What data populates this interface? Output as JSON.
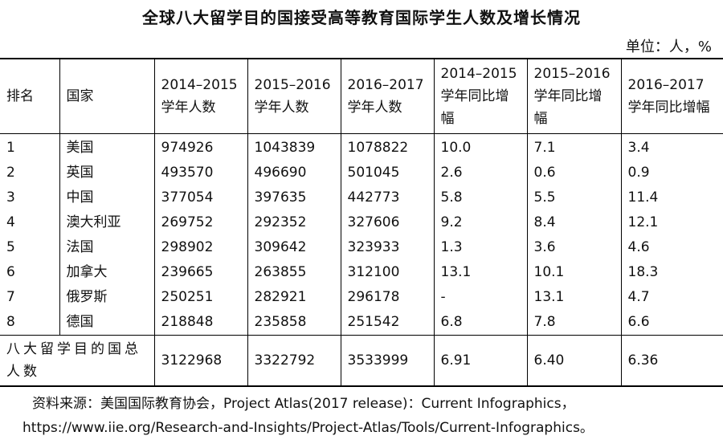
{
  "title": "全球八大留学目的国接受高等教育国际学生人数及增长情况",
  "unit": "单位：人，%",
  "columns": [
    "排名",
    "国家",
    "2014–2015 学年人数",
    "2015–2016 学年人数",
    "2016–2017 学年人数",
    "2014–2015 学年同比增幅",
    "2015–2016 学年同比增幅",
    "2016–2017 学年同比增幅"
  ],
  "rows": [
    [
      "1",
      "美国",
      "974926",
      "1043839",
      "1078822",
      "10.0",
      "7.1",
      "3.4"
    ],
    [
      "2",
      "英国",
      "493570",
      "496690",
      "501045",
      "2.6",
      "0.6",
      "0.9"
    ],
    [
      "3",
      "中国",
      "377054",
      "397635",
      "442773",
      "5.8",
      "5.5",
      "11.4"
    ],
    [
      "4",
      "澳大利亚",
      "269752",
      "292352",
      "327606",
      "9.2",
      "8.4",
      "12.1"
    ],
    [
      "5",
      "法国",
      "298902",
      "309642",
      "323933",
      "1.3",
      "3.6",
      "4.6"
    ],
    [
      "6",
      "加拿大",
      "239665",
      "263855",
      "312100",
      "13.1",
      "10.1",
      "18.3"
    ],
    [
      "7",
      "俄罗斯",
      "250251",
      "282921",
      "296178",
      "-",
      "13.1",
      "4.7"
    ],
    [
      "8",
      "德国",
      "218848",
      "235858",
      "251542",
      "6.8",
      "7.8",
      "6.6"
    ]
  ],
  "total": {
    "label": "八大留学目的国总人数",
    "values": [
      "3122968",
      "3322792",
      "3533999",
      "6.91",
      "6.40",
      "6.36"
    ]
  },
  "source": {
    "line1": "资料来源：美国国际教育协会，Project Atlas(2017 release)：Current Infographics，",
    "line2": "https://www.iie.org/Research-and-Insights/Project-Atlas/Tools/Current-Infographics。"
  }
}
